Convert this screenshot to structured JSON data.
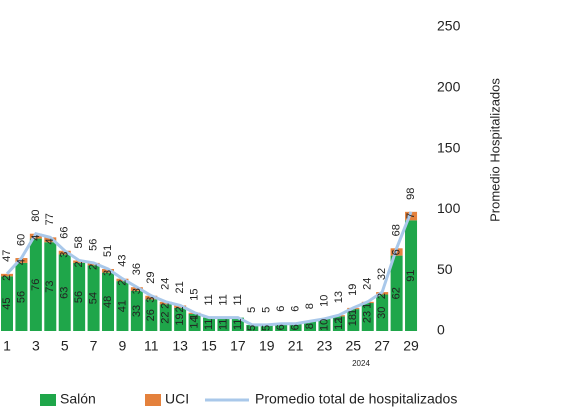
{
  "chart_data": {
    "type": "bar",
    "categories": [
      "1",
      null,
      "3",
      null,
      "5",
      null,
      "7",
      null,
      "9",
      null,
      "11",
      null,
      "13",
      null,
      "15",
      null,
      "17",
      null,
      "19",
      null,
      "21",
      null,
      "23",
      null,
      "25",
      null,
      "27",
      null,
      "29"
    ],
    "x_annotation": "2024",
    "y_axis_label": "Promedio Hospitalizados",
    "stacked": true,
    "series": [
      {
        "name": "Salón",
        "color": "#1fa64a",
        "values": [
          45,
          56,
          76,
          73,
          63,
          56,
          54,
          48,
          41,
          33,
          26,
          22,
          19,
          14,
          11,
          11,
          11,
          5,
          5,
          6,
          6,
          8,
          10,
          12,
          18,
          23,
          30,
          62,
          91
        ]
      },
      {
        "name": "UCI",
        "color": "#e4813c",
        "values": [
          2,
          4,
          4,
          4,
          3,
          2,
          2,
          3,
          2,
          3,
          3,
          2,
          2,
          1,
          0,
          0,
          0,
          0,
          0,
          0,
          0,
          0,
          0,
          1,
          1,
          1,
          2,
          6,
          7
        ]
      },
      {
        "name": "Promedio total  de hospitalizados",
        "type": "line",
        "color": "#a9c8ea",
        "values": [
          47,
          60,
          80,
          77,
          66,
          58,
          56,
          51,
          43,
          36,
          29,
          24,
          21,
          15,
          11,
          11,
          11,
          5,
          5,
          6,
          6,
          8,
          10,
          13,
          19,
          24,
          32,
          68,
          98
        ]
      }
    ],
    "ylim": [
      0,
      250
    ],
    "yticks": [
      0,
      50,
      100,
      150,
      200,
      250
    ],
    "y_axis_side": "right"
  }
}
